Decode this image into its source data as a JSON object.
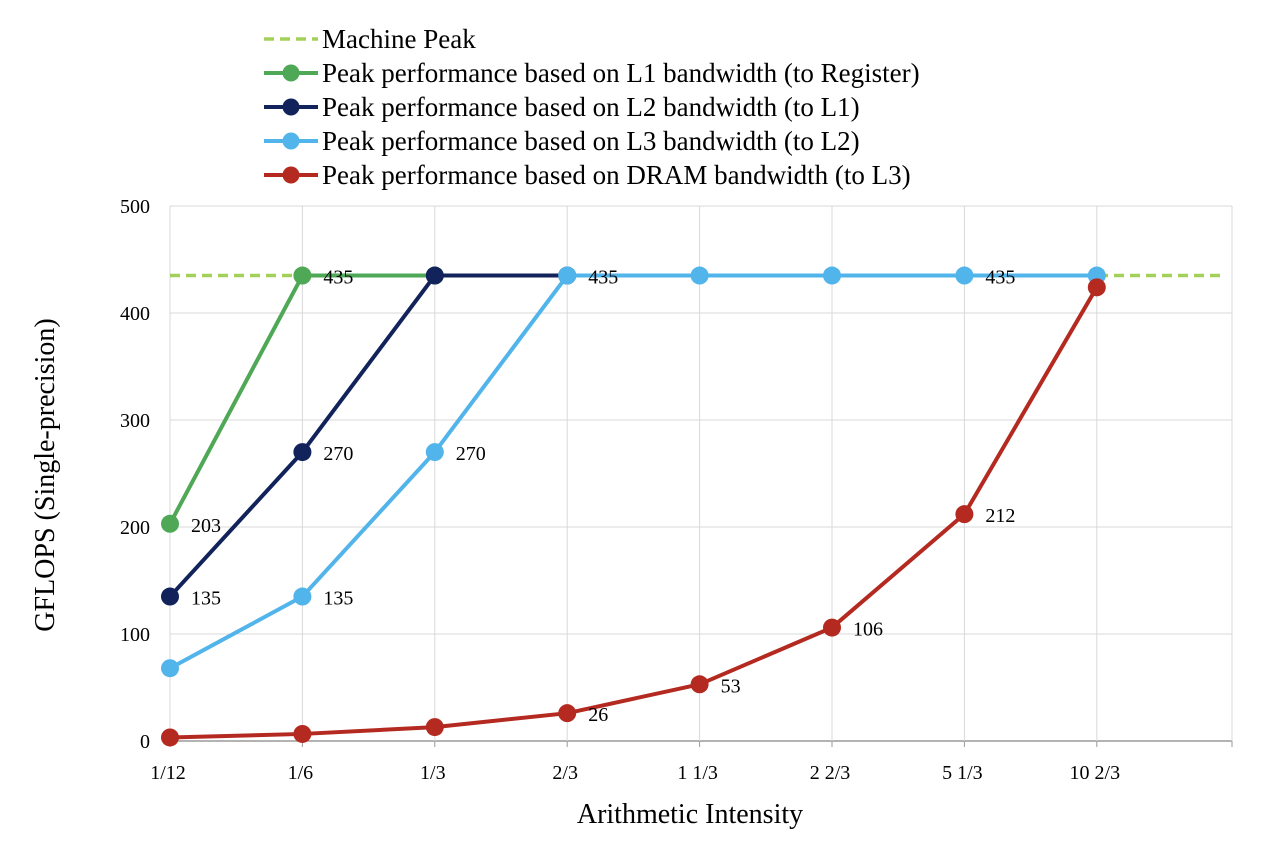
{
  "chart_data": {
    "type": "line",
    "title": "",
    "xlabel": "Arithmetic Intensity",
    "ylabel": "GFLOPS (Single-precision)",
    "ylim": [
      0,
      500
    ],
    "yticks": [
      "0",
      "100",
      "200",
      "300",
      "400",
      "500"
    ],
    "categories": [
      "1/12",
      "1/6",
      "1/3",
      "2/3",
      "1  1/3",
      "2  2/3",
      "5  1/3",
      "10  2/3"
    ],
    "grid": true,
    "legend_position": "top",
    "machine_peak": {
      "name": "Machine Peak",
      "value": 435,
      "color": "#a3d05a"
    },
    "series": [
      {
        "name": "Peak performance based on L1 bandwidth (to Register)",
        "color": "#4ea855",
        "values": [
          203,
          435,
          435,
          null,
          null,
          null,
          null,
          null
        ],
        "labels": [
          "203",
          "435",
          "",
          "",
          "",
          "",
          "",
          ""
        ]
      },
      {
        "name": "Peak performance based on L2 bandwidth (to L1)",
        "color": "#11235a",
        "values": [
          135,
          270,
          435,
          435,
          null,
          null,
          null,
          null
        ],
        "labels": [
          "135",
          "270",
          "",
          "",
          "",
          "",
          "",
          ""
        ]
      },
      {
        "name": "Peak performance based on L3 bandwidth (to L2)",
        "color": "#51b4ea",
        "values": [
          68,
          135,
          270,
          435,
          435,
          435,
          435,
          435
        ],
        "labels": [
          "",
          "135",
          "270",
          "435",
          "",
          "",
          "435",
          ""
        ]
      },
      {
        "name": "Peak performance based on DRAM bandwidth (to L3)",
        "color": "#b42a20",
        "values": [
          3.3,
          6.6,
          13,
          26,
          53,
          106,
          212,
          424
        ],
        "labels": [
          "",
          "",
          "",
          "26",
          "53",
          "106",
          "212",
          ""
        ]
      }
    ]
  }
}
